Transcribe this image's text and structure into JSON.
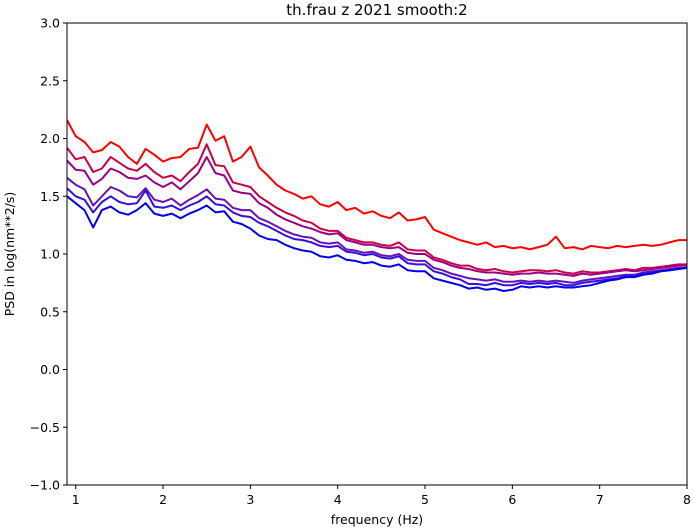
{
  "chart_data": {
    "type": "line",
    "title": "th.frau z 2021 smooth:2",
    "xlabel": "frequency (Hz)",
    "ylabel": "PSD in log(nm**2/s)",
    "xlim": [
      0.9,
      8.0
    ],
    "ylim": [
      -1.0,
      3.0
    ],
    "xticks": [
      "1",
      "2",
      "3",
      "4",
      "5",
      "6",
      "7",
      "8"
    ],
    "yticks": [
      "−1.0",
      "−0.5",
      "0.0",
      "0.5",
      "1.0",
      "1.5",
      "2.0",
      "2.5",
      "3.0"
    ],
    "grid": false,
    "legend": "none",
    "series": [
      {
        "color": "#ff0000",
        "x": [
          0.9,
          1.0,
          1.1,
          1.2,
          1.3,
          1.4,
          1.5,
          1.6,
          1.7,
          1.8,
          1.9,
          2.0,
          2.1,
          2.2,
          2.3,
          2.4,
          2.5,
          2.6,
          2.7,
          2.8,
          2.9,
          3.0,
          3.1,
          3.2,
          3.3,
          3.4,
          3.5,
          3.6,
          3.7,
          3.8,
          3.9,
          4.0,
          4.1,
          4.2,
          4.3,
          4.4,
          4.5,
          4.6,
          4.7,
          4.8,
          4.9,
          5.0,
          5.1,
          5.2,
          5.3,
          5.4,
          5.5,
          5.6,
          5.7,
          5.8,
          5.9,
          6.0,
          6.1,
          6.2,
          6.3,
          6.4,
          6.5,
          6.6,
          6.7,
          6.8,
          6.9,
          7.0,
          7.1,
          7.2,
          7.3,
          7.4,
          7.5,
          7.6,
          7.7,
          7.8,
          7.9,
          8.0
        ],
        "y": [
          2.16,
          2.02,
          1.97,
          1.88,
          1.9,
          1.97,
          1.93,
          1.84,
          1.78,
          1.91,
          1.86,
          1.8,
          1.83,
          1.84,
          1.91,
          1.92,
          2.12,
          1.98,
          2.02,
          1.8,
          1.84,
          1.93,
          1.75,
          1.68,
          1.6,
          1.55,
          1.52,
          1.48,
          1.5,
          1.43,
          1.41,
          1.45,
          1.38,
          1.4,
          1.35,
          1.37,
          1.33,
          1.31,
          1.36,
          1.29,
          1.3,
          1.32,
          1.21,
          1.18,
          1.15,
          1.12,
          1.1,
          1.08,
          1.1,
          1.06,
          1.07,
          1.05,
          1.06,
          1.04,
          1.06,
          1.08,
          1.15,
          1.05,
          1.06,
          1.04,
          1.07,
          1.06,
          1.05,
          1.07,
          1.06,
          1.07,
          1.08,
          1.07,
          1.08,
          1.1,
          1.12,
          1.12
        ]
      },
      {
        "color": "#cc0044",
        "x": [
          0.9,
          1.0,
          1.1,
          1.2,
          1.3,
          1.4,
          1.5,
          1.6,
          1.7,
          1.8,
          1.9,
          2.0,
          2.1,
          2.2,
          2.3,
          2.4,
          2.5,
          2.6,
          2.7,
          2.8,
          2.9,
          3.0,
          3.1,
          3.2,
          3.3,
          3.4,
          3.5,
          3.6,
          3.7,
          3.8,
          3.9,
          4.0,
          4.1,
          4.2,
          4.3,
          4.4,
          4.5,
          4.6,
          4.7,
          4.8,
          4.9,
          5.0,
          5.1,
          5.2,
          5.3,
          5.4,
          5.5,
          5.6,
          5.7,
          5.8,
          5.9,
          6.0,
          6.1,
          6.2,
          6.3,
          6.4,
          6.5,
          6.6,
          6.7,
          6.8,
          6.9,
          7.0,
          7.1,
          7.2,
          7.3,
          7.4,
          7.5,
          7.6,
          7.7,
          7.8,
          7.9,
          8.0
        ],
        "y": [
          1.92,
          1.82,
          1.84,
          1.71,
          1.74,
          1.84,
          1.79,
          1.74,
          1.72,
          1.78,
          1.71,
          1.66,
          1.68,
          1.63,
          1.71,
          1.78,
          1.95,
          1.77,
          1.76,
          1.62,
          1.6,
          1.58,
          1.5,
          1.45,
          1.4,
          1.36,
          1.33,
          1.29,
          1.27,
          1.22,
          1.2,
          1.2,
          1.14,
          1.12,
          1.1,
          1.1,
          1.08,
          1.07,
          1.1,
          1.04,
          1.03,
          1.03,
          0.97,
          0.95,
          0.92,
          0.9,
          0.9,
          0.87,
          0.86,
          0.87,
          0.85,
          0.84,
          0.85,
          0.86,
          0.86,
          0.85,
          0.86,
          0.84,
          0.83,
          0.85,
          0.84,
          0.84,
          0.85,
          0.86,
          0.87,
          0.86,
          0.88,
          0.88,
          0.89,
          0.9,
          0.91,
          0.91
        ]
      },
      {
        "color": "#990088",
        "x": [
          0.9,
          1.0,
          1.1,
          1.2,
          1.3,
          1.4,
          1.5,
          1.6,
          1.7,
          1.8,
          1.9,
          2.0,
          2.1,
          2.2,
          2.3,
          2.4,
          2.5,
          2.6,
          2.7,
          2.8,
          2.9,
          3.0,
          3.1,
          3.2,
          3.3,
          3.4,
          3.5,
          3.6,
          3.7,
          3.8,
          3.9,
          4.0,
          4.1,
          4.2,
          4.3,
          4.4,
          4.5,
          4.6,
          4.7,
          4.8,
          4.9,
          5.0,
          5.1,
          5.2,
          5.3,
          5.4,
          5.5,
          5.6,
          5.7,
          5.8,
          5.9,
          6.0,
          6.1,
          6.2,
          6.3,
          6.4,
          6.5,
          6.6,
          6.7,
          6.8,
          6.9,
          7.0,
          7.1,
          7.2,
          7.3,
          7.4,
          7.5,
          7.6,
          7.7,
          7.8,
          7.9,
          8.0
        ],
        "y": [
          1.81,
          1.73,
          1.72,
          1.6,
          1.65,
          1.74,
          1.71,
          1.66,
          1.65,
          1.68,
          1.62,
          1.58,
          1.62,
          1.56,
          1.63,
          1.7,
          1.84,
          1.7,
          1.68,
          1.55,
          1.53,
          1.52,
          1.44,
          1.4,
          1.34,
          1.3,
          1.27,
          1.24,
          1.22,
          1.19,
          1.17,
          1.18,
          1.12,
          1.1,
          1.08,
          1.08,
          1.06,
          1.05,
          1.06,
          1.01,
          1.0,
          1.0,
          0.95,
          0.93,
          0.9,
          0.88,
          0.87,
          0.85,
          0.84,
          0.84,
          0.83,
          0.82,
          0.83,
          0.83,
          0.84,
          0.83,
          0.83,
          0.82,
          0.81,
          0.83,
          0.82,
          0.83,
          0.84,
          0.85,
          0.86,
          0.85,
          0.86,
          0.87,
          0.88,
          0.89,
          0.9,
          0.9
        ]
      },
      {
        "color": "#6611bb",
        "x": [
          0.9,
          1.0,
          1.1,
          1.2,
          1.3,
          1.4,
          1.5,
          1.6,
          1.7,
          1.8,
          1.9,
          2.0,
          2.1,
          2.2,
          2.3,
          2.4,
          2.5,
          2.6,
          2.7,
          2.8,
          2.9,
          3.0,
          3.1,
          3.2,
          3.3,
          3.4,
          3.5,
          3.6,
          3.7,
          3.8,
          3.9,
          4.0,
          4.1,
          4.2,
          4.3,
          4.4,
          4.5,
          4.6,
          4.7,
          4.8,
          4.9,
          5.0,
          5.1,
          5.2,
          5.3,
          5.4,
          5.5,
          5.6,
          5.7,
          5.8,
          5.9,
          6.0,
          6.1,
          6.2,
          6.3,
          6.4,
          6.5,
          6.6,
          6.7,
          6.8,
          6.9,
          7.0,
          7.1,
          7.2,
          7.3,
          7.4,
          7.5,
          7.6,
          7.7,
          7.8,
          7.9,
          8.0
        ],
        "y": [
          1.66,
          1.6,
          1.56,
          1.42,
          1.5,
          1.58,
          1.55,
          1.5,
          1.49,
          1.57,
          1.47,
          1.45,
          1.48,
          1.42,
          1.47,
          1.51,
          1.56,
          1.48,
          1.47,
          1.4,
          1.38,
          1.38,
          1.31,
          1.28,
          1.24,
          1.2,
          1.17,
          1.15,
          1.14,
          1.1,
          1.09,
          1.1,
          1.04,
          1.03,
          1.01,
          1.02,
          0.99,
          0.98,
          1.0,
          0.95,
          0.94,
          0.94,
          0.88,
          0.86,
          0.83,
          0.81,
          0.79,
          0.78,
          0.77,
          0.78,
          0.76,
          0.76,
          0.77,
          0.76,
          0.77,
          0.76,
          0.77,
          0.76,
          0.75,
          0.77,
          0.78,
          0.79,
          0.8,
          0.81,
          0.82,
          0.82,
          0.84,
          0.85,
          0.86,
          0.87,
          0.88,
          0.88
        ]
      },
      {
        "color": "#3311dd",
        "x": [
          0.9,
          1.0,
          1.1,
          1.2,
          1.3,
          1.4,
          1.5,
          1.6,
          1.7,
          1.8,
          1.9,
          2.0,
          2.1,
          2.2,
          2.3,
          2.4,
          2.5,
          2.6,
          2.7,
          2.8,
          2.9,
          3.0,
          3.1,
          3.2,
          3.3,
          3.4,
          3.5,
          3.6,
          3.7,
          3.8,
          3.9,
          4.0,
          4.1,
          4.2,
          4.3,
          4.4,
          4.5,
          4.6,
          4.7,
          4.8,
          4.9,
          5.0,
          5.1,
          5.2,
          5.3,
          5.4,
          5.5,
          5.6,
          5.7,
          5.8,
          5.9,
          6.0,
          6.1,
          6.2,
          6.3,
          6.4,
          6.5,
          6.6,
          6.7,
          6.8,
          6.9,
          7.0,
          7.1,
          7.2,
          7.3,
          7.4,
          7.5,
          7.6,
          7.7,
          7.8,
          7.9,
          8.0
        ],
        "y": [
          1.57,
          1.5,
          1.47,
          1.36,
          1.45,
          1.5,
          1.45,
          1.43,
          1.44,
          1.55,
          1.41,
          1.4,
          1.42,
          1.38,
          1.42,
          1.45,
          1.5,
          1.43,
          1.42,
          1.36,
          1.33,
          1.32,
          1.27,
          1.24,
          1.2,
          1.16,
          1.13,
          1.12,
          1.1,
          1.07,
          1.06,
          1.07,
          1.02,
          1.01,
          0.99,
          1.0,
          0.97,
          0.96,
          0.98,
          0.92,
          0.91,
          0.91,
          0.85,
          0.83,
          0.8,
          0.78,
          0.74,
          0.74,
          0.73,
          0.75,
          0.73,
          0.73,
          0.75,
          0.74,
          0.75,
          0.74,
          0.75,
          0.73,
          0.73,
          0.75,
          0.76,
          0.77,
          0.78,
          0.79,
          0.81,
          0.81,
          0.83,
          0.84,
          0.85,
          0.86,
          0.87,
          0.88
        ]
      },
      {
        "color": "#0000ee",
        "x": [
          0.9,
          1.0,
          1.1,
          1.2,
          1.3,
          1.4,
          1.5,
          1.6,
          1.7,
          1.8,
          1.9,
          2.0,
          2.1,
          2.2,
          2.3,
          2.4,
          2.5,
          2.6,
          2.7,
          2.8,
          2.9,
          3.0,
          3.1,
          3.2,
          3.3,
          3.4,
          3.5,
          3.6,
          3.7,
          3.8,
          3.9,
          4.0,
          4.1,
          4.2,
          4.3,
          4.4,
          4.5,
          4.6,
          4.7,
          4.8,
          4.9,
          5.0,
          5.1,
          5.2,
          5.3,
          5.4,
          5.5,
          5.6,
          5.7,
          5.8,
          5.9,
          6.0,
          6.1,
          6.2,
          6.3,
          6.4,
          6.5,
          6.6,
          6.7,
          6.8,
          6.9,
          7.0,
          7.1,
          7.2,
          7.3,
          7.4,
          7.5,
          7.6,
          7.7,
          7.8,
          7.9,
          8.0
        ],
        "y": [
          1.5,
          1.44,
          1.38,
          1.23,
          1.38,
          1.41,
          1.36,
          1.34,
          1.38,
          1.44,
          1.35,
          1.33,
          1.35,
          1.31,
          1.35,
          1.38,
          1.42,
          1.36,
          1.37,
          1.28,
          1.26,
          1.22,
          1.16,
          1.13,
          1.12,
          1.08,
          1.05,
          1.03,
          1.02,
          0.98,
          0.97,
          0.99,
          0.95,
          0.94,
          0.92,
          0.93,
          0.9,
          0.89,
          0.91,
          0.86,
          0.85,
          0.85,
          0.79,
          0.77,
          0.75,
          0.73,
          0.7,
          0.71,
          0.69,
          0.7,
          0.68,
          0.69,
          0.72,
          0.71,
          0.72,
          0.71,
          0.72,
          0.71,
          0.71,
          0.72,
          0.73,
          0.75,
          0.77,
          0.78,
          0.8,
          0.8,
          0.82,
          0.83,
          0.85,
          0.86,
          0.87,
          0.88
        ]
      }
    ]
  }
}
